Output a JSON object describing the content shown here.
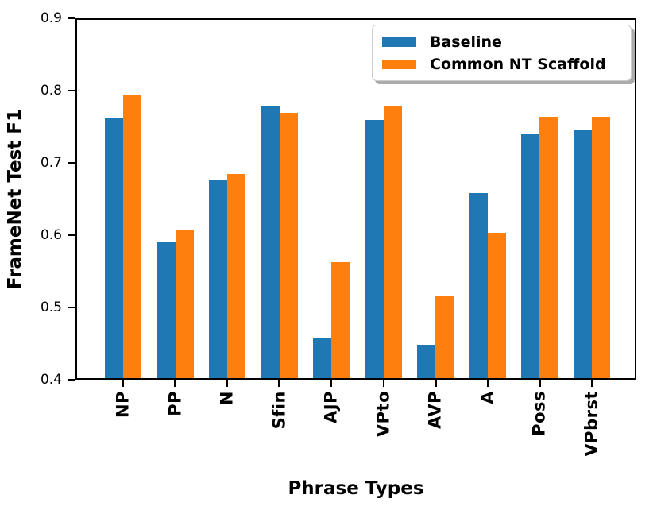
{
  "chart_data": {
    "type": "bar",
    "title": "",
    "xlabel": "Phrase Types",
    "ylabel": "FrameNet Test F1",
    "categories": [
      "NP",
      "PP",
      "N",
      "Sfin",
      "AJP",
      "VPto",
      "AVP",
      "A",
      "Poss",
      "VPbrst"
    ],
    "series": [
      {
        "name": "Baseline",
        "color": "#1f77b4",
        "values": [
          0.762,
          0.59,
          0.676,
          0.778,
          0.457,
          0.759,
          0.448,
          0.658,
          0.74,
          0.746
        ]
      },
      {
        "name": "Common NT Scaffold",
        "color": "#ff7f0e",
        "values": [
          0.793,
          0.608,
          0.685,
          0.769,
          0.563,
          0.779,
          0.516,
          0.603,
          0.764,
          0.764
        ]
      }
    ],
    "ylim": [
      0.4,
      0.9
    ],
    "yticks": [
      0.4,
      0.5,
      0.6,
      0.7,
      0.8,
      0.9
    ],
    "ytick_labels": [
      "0.4",
      "0.5",
      "0.6",
      "0.7",
      "0.8",
      "0.9"
    ],
    "grid": false,
    "legend_position": "upper right",
    "axis_color": "#000000",
    "background_color": "#ffffff"
  }
}
